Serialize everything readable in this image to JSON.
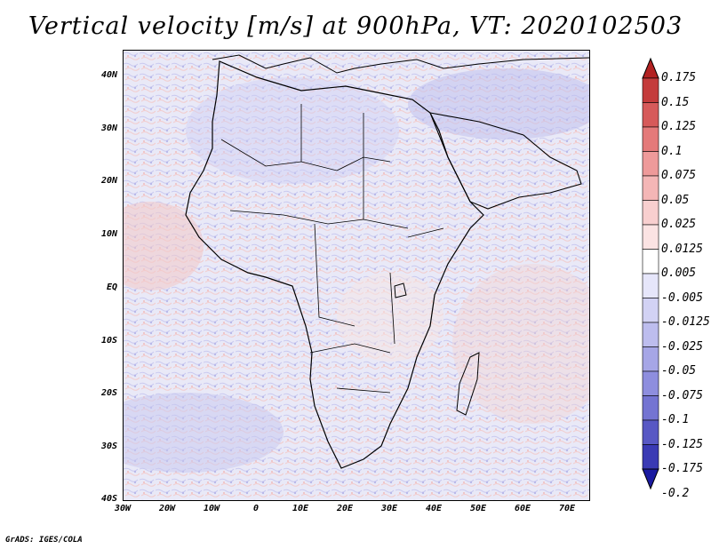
{
  "title": "Vertical velocity [m/s] at 900hPa, VT: 2020102503",
  "footer": "GrADS: IGES/COLA",
  "lat_labels": [
    "40N",
    "30N",
    "20N",
    "10N",
    "EQ",
    "10S",
    "20S",
    "30S",
    "40S"
  ],
  "lon_labels": [
    "30W",
    "20W",
    "10W",
    "0",
    "10E",
    "20E",
    "30E",
    "40E",
    "50E",
    "60E",
    "70E"
  ],
  "colorbar": {
    "levels": [
      "0.175",
      "0.15",
      "0.125",
      "0.1",
      "0.075",
      "0.05",
      "0.025",
      "0.0125",
      "0.005",
      "-0.005",
      "-0.0125",
      "-0.025",
      "-0.05",
      "-0.075",
      "-0.1",
      "-0.125",
      "-0.175",
      "-0.2"
    ],
    "colors": [
      "#b22222",
      "#c43c3c",
      "#d65a5a",
      "#e47a7a",
      "#ee9a9a",
      "#f4b6b6",
      "#f8cfcf",
      "#fbe3e3",
      "#ffffff",
      "#e6e6fa",
      "#d2d2f4",
      "#bdbdee",
      "#a6a6e6",
      "#8e8ede",
      "#7474d2",
      "#5858c4",
      "#3a3ab4",
      "#1a1aa0"
    ]
  }
}
